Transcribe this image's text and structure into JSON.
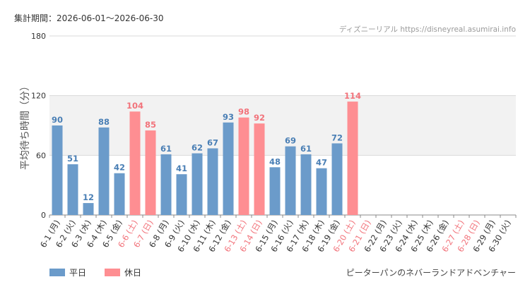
{
  "header": {
    "period_label": "集計期間：2026-06-01～2026-06-30",
    "source_label": "ディズニーリアル https://disneyreal.asumirai.info"
  },
  "footer": {
    "attraction_name": "ピーターパンのネバーランドアドベンチャー"
  },
  "legend": [
    {
      "label": "平日",
      "color": "#6b9bca"
    },
    {
      "label": "休日",
      "color": "#fe8e92"
    }
  ],
  "colors": {
    "weekday": "#6b9bca",
    "holiday": "#fe8e92",
    "weekday_label": "#4a7fb5",
    "holiday_label": "#f2737b",
    "band": "#f2f2f2",
    "grid": "#d9d9d9"
  },
  "chart_data": {
    "type": "bar",
    "ylabel": "平均待ち時間（分）",
    "ylim": [
      0,
      180
    ],
    "yticks": [
      0,
      60,
      120,
      180
    ],
    "highlight_band": [
      60,
      120
    ],
    "categories": [
      "6-1 (月)",
      "6-2 (火)",
      "6-3 (水)",
      "6-4 (木)",
      "6-5 (金)",
      "6-6 (土)",
      "6-7 (日)",
      "6-8 (月)",
      "6-9 (火)",
      "6-10 (水)",
      "6-11 (木)",
      "6-12 (金)",
      "6-13 (土)",
      "6-14 (日)",
      "6-15 (月)",
      "6-16 (火)",
      "6-17 (水)",
      "6-18 (木)",
      "6-19 (金)",
      "6-20 (土)",
      "6-21 (日)",
      "6-22 (月)",
      "6-23 (火)",
      "6-24 (水)",
      "6-25 (木)",
      "6-26 (金)",
      "6-27 (土)",
      "6-28 (日)",
      "6-29 (月)",
      "6-30 (火)"
    ],
    "day_types": [
      "平日",
      "平日",
      "平日",
      "平日",
      "平日",
      "休日",
      "休日",
      "平日",
      "平日",
      "平日",
      "平日",
      "平日",
      "休日",
      "休日",
      "平日",
      "平日",
      "平日",
      "平日",
      "平日",
      "休日",
      "休日",
      "平日",
      "平日",
      "平日",
      "平日",
      "平日",
      "休日",
      "休日",
      "平日",
      "平日"
    ],
    "values": [
      90,
      51,
      12,
      88,
      42,
      104,
      85,
      61,
      41,
      62,
      67,
      93,
      98,
      92,
      48,
      69,
      61,
      47,
      72,
      114,
      null,
      null,
      null,
      null,
      null,
      null,
      null,
      null,
      null,
      null
    ]
  }
}
